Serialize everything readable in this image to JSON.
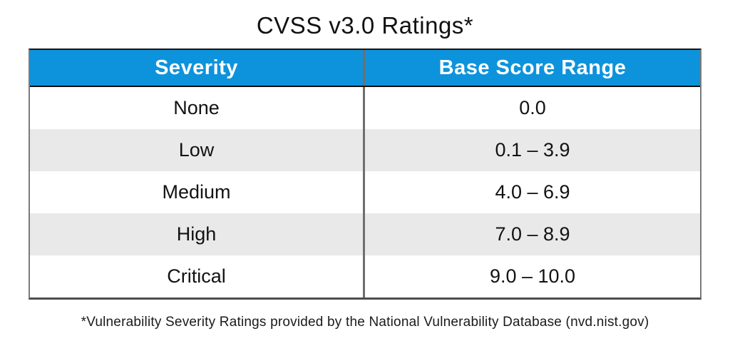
{
  "title": "CVSS v3.0 Ratings*",
  "footnote": "*Vulnerability Severity Ratings provided by the National Vulnerability Database (nvd.nist.gov)",
  "colors": {
    "header_bg": "#0D93DC",
    "header_text": "#FFFFFF",
    "row_alt_bg": "#E9E9E9",
    "row_bg": "#FFFFFF",
    "column_divider": "#6E6E6E",
    "border_dark": "#141414",
    "text": "#121212"
  },
  "chart_data": {
    "type": "table",
    "title": "CVSS v3.0 Ratings*",
    "columns": [
      "Severity",
      "Base Score Range"
    ],
    "rows": [
      [
        "None",
        "0.0"
      ],
      [
        "Low",
        "0.1 – 3.9"
      ],
      [
        "Medium",
        "4.0 – 6.9"
      ],
      [
        "High",
        "7.0 – 8.9"
      ],
      [
        "Critical",
        "9.0 – 10.0"
      ]
    ],
    "footnote": "*Vulnerability Severity Ratings provided by the National Vulnerability Database (nvd.nist.gov)"
  }
}
